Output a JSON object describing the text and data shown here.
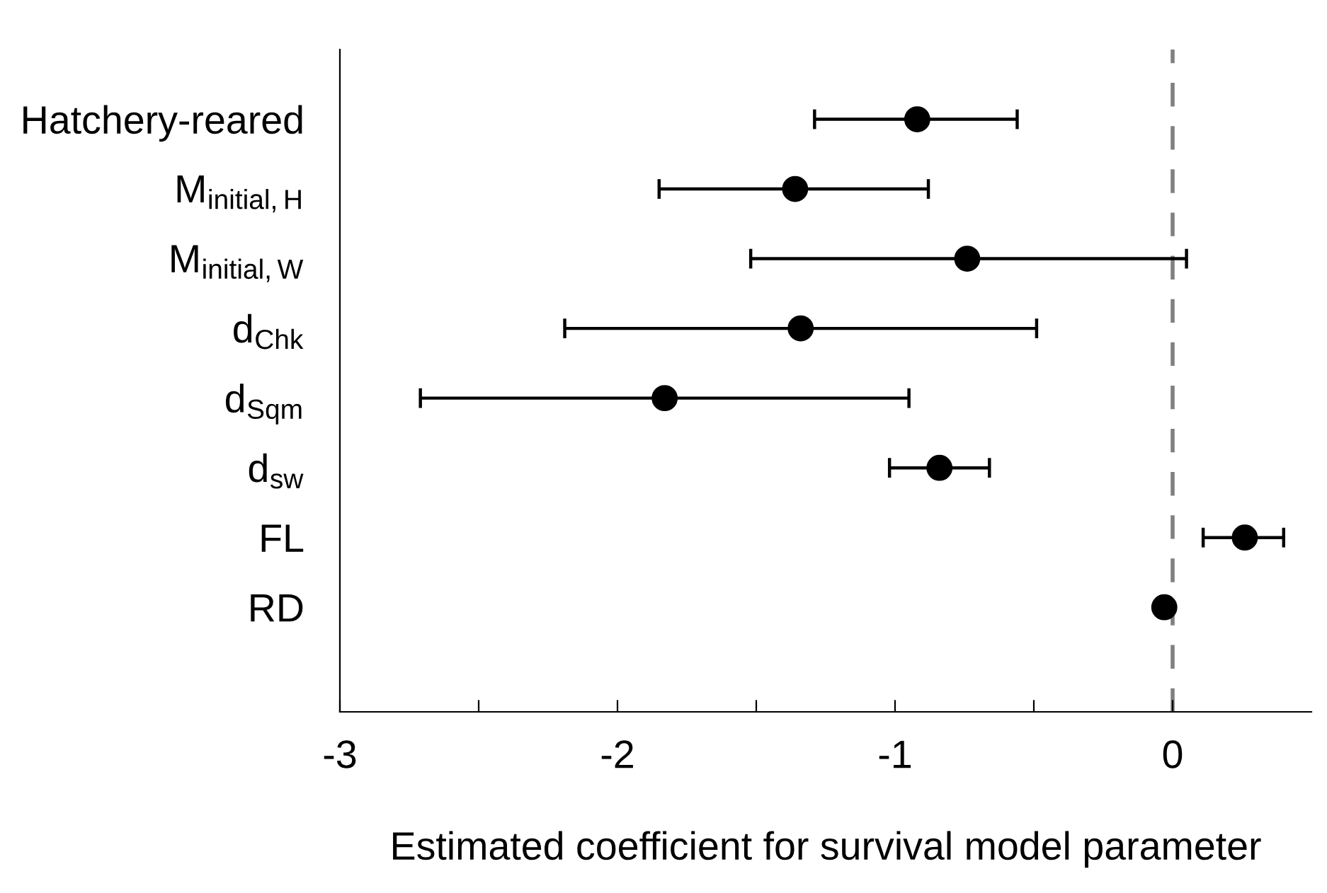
{
  "chart_data": {
    "type": "scatter",
    "orientation": "horizontal",
    "categories": [
      "Hatchery-reared",
      "M$_{initial,H}$",
      "M$_{initial,W}$",
      "d$_{Chk}$",
      "d$_{Sqm}$",
      "d$_{sw}$",
      "FL",
      "RD"
    ],
    "color": "#000000",
    "values": [
      -0.92,
      -1.36,
      -0.74,
      -1.34,
      -1.83,
      -0.84,
      0.26,
      -0.03
    ],
    "errors": [
      [
        -1.29,
        -0.56
      ],
      [
        -1.85,
        -0.88
      ],
      [
        -1.52,
        0.05
      ],
      [
        -2.19,
        -0.49
      ],
      [
        -2.71,
        -0.95
      ],
      [
        -1.02,
        -0.66
      ],
      [
        0.11,
        0.4
      ],
      null
    ],
    "marker": "circle",
    "xlabel": "Estimated coefficient for survival model parameter",
    "xlim": [
      -3,
      0.5
    ],
    "xticks": [
      -3,
      {
        "value": -2.5,
        "label": null
      },
      -2,
      {
        "value": -1.5,
        "label": null
      },
      -1,
      {
        "value": -0.5,
        "label": null
      },
      0
    ],
    "ref_lines": [
      {
        "axis": "x",
        "value": 0,
        "color": "#808080",
        "line_style": "dashed"
      }
    ],
    "grid": false,
    "legend": false
  }
}
